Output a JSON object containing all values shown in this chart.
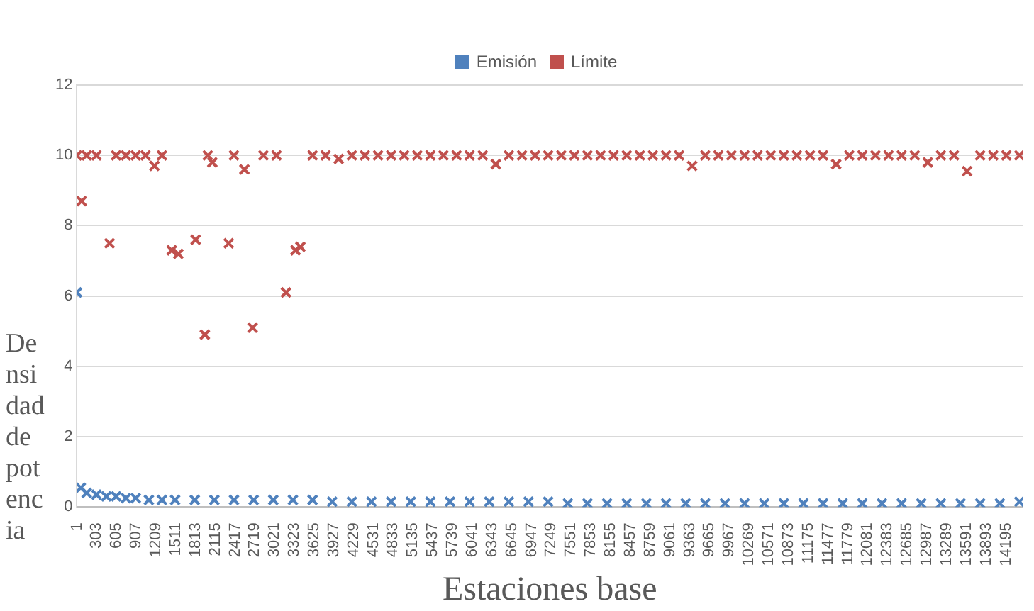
{
  "chart_data": {
    "type": "scatter",
    "xlabel": "Estaciones base",
    "ylabel": "Densidad de potencia",
    "legend": "top",
    "grid": "y",
    "marker": "cross",
    "xlim": [
      1,
      14450
    ],
    "ylim": [
      0,
      12
    ],
    "yticks": [
      0,
      2,
      4,
      6,
      8,
      10,
      12
    ],
    "xticks": [
      1,
      303,
      605,
      907,
      1209,
      1511,
      1813,
      2115,
      2417,
      2719,
      3021,
      3323,
      3625,
      3927,
      4229,
      4531,
      4833,
      5135,
      5437,
      5739,
      6041,
      6343,
      6645,
      6947,
      7249,
      7551,
      7853,
      8155,
      8457,
      8759,
      9061,
      9363,
      9665,
      9967,
      10269,
      10571,
      10873,
      11175,
      11477,
      11779,
      12081,
      12383,
      12685,
      12987,
      13289,
      13591,
      13893,
      14195
    ],
    "series": [
      {
        "name": "Emisión",
        "color": "#4f81bd",
        "x": [
          1,
          60,
          150,
          300,
          450,
          600,
          750,
          900,
          1100,
          1300,
          1501,
          1801,
          2101,
          2401,
          2701,
          3001,
          3301,
          3601,
          3901,
          4201,
          4501,
          4801,
          5101,
          5401,
          5701,
          6001,
          6301,
          6601,
          6901,
          7201,
          7501,
          7801,
          8101,
          8401,
          8701,
          9001,
          9301,
          9601,
          9901,
          10201,
          10501,
          10801,
          11101,
          11401,
          11701,
          12001,
          12301,
          12601,
          12901,
          13201,
          13501,
          13801,
          14101,
          14401
        ],
        "values": [
          6.1,
          0.55,
          0.4,
          0.35,
          0.3,
          0.3,
          0.25,
          0.25,
          0.2,
          0.2,
          0.2,
          0.2,
          0.2,
          0.2,
          0.2,
          0.2,
          0.2,
          0.2,
          0.15,
          0.15,
          0.15,
          0.15,
          0.15,
          0.15,
          0.15,
          0.15,
          0.15,
          0.15,
          0.15,
          0.15,
          0.1,
          0.1,
          0.1,
          0.1,
          0.1,
          0.1,
          0.1,
          0.1,
          0.1,
          0.1,
          0.1,
          0.1,
          0.1,
          0.1,
          0.1,
          0.1,
          0.1,
          0.1,
          0.1,
          0.1,
          0.1,
          0.1,
          0.1,
          0.15
        ]
      },
      {
        "name": "Límite",
        "color": "#c0504d",
        "x": [
          1,
          73,
          150,
          300,
          500,
          600,
          750,
          900,
          1050,
          1185,
          1300,
          1450,
          1550,
          1815,
          1955,
          2000,
          2070,
          2320,
          2400,
          2560,
          2685,
          2850,
          3050,
          3195,
          3340,
          3415,
          3601,
          3801,
          4001,
          4201,
          4401,
          4601,
          4801,
          5001,
          5201,
          5401,
          5601,
          5801,
          6001,
          6201,
          6401,
          6601,
          6801,
          7001,
          7201,
          7401,
          7601,
          7801,
          8001,
          8201,
          8401,
          8601,
          8801,
          9001,
          9201,
          9401,
          9601,
          9801,
          10001,
          10201,
          10401,
          10601,
          10801,
          11001,
          11201,
          11401,
          11601,
          11801,
          12001,
          12201,
          12401,
          12601,
          12801,
          13001,
          13201,
          13401,
          13601,
          13801,
          14001,
          14201,
          14401
        ],
        "values": [
          10,
          8.7,
          10,
          10,
          7.5,
          10,
          10,
          10,
          10,
          9.7,
          10,
          7.3,
          7.2,
          7.6,
          4.9,
          10,
          9.8,
          7.5,
          10,
          9.6,
          5.1,
          10,
          10,
          6.1,
          7.3,
          7.4,
          10,
          10,
          9.9,
          10,
          10,
          10,
          10,
          10,
          10,
          10,
          10,
          10,
          10,
          10,
          9.75,
          10,
          10,
          10,
          10,
          10,
          10,
          10,
          10,
          10,
          10,
          10,
          10,
          10,
          10,
          9.7,
          10,
          10,
          10,
          10,
          10,
          10,
          10,
          10,
          10,
          10,
          9.75,
          10,
          10,
          10,
          10,
          10,
          10,
          9.8,
          10,
          10,
          9.55,
          10,
          10,
          10,
          10
        ]
      }
    ]
  }
}
